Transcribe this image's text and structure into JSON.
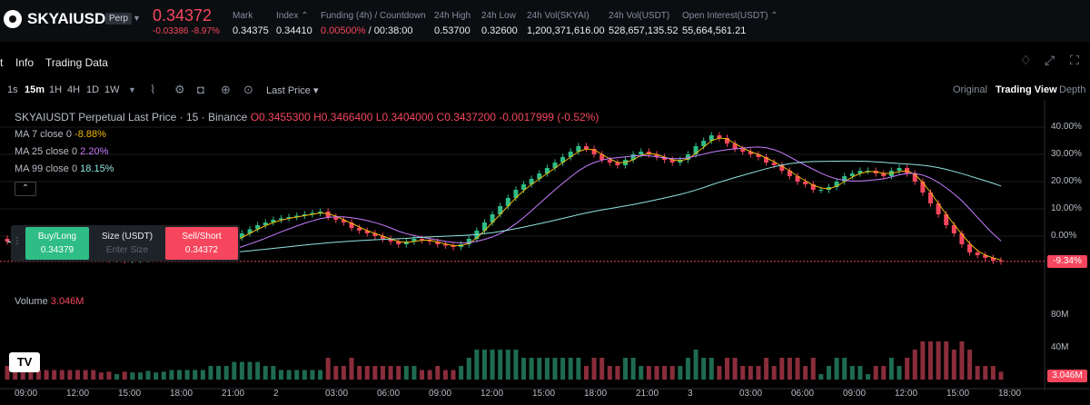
{
  "ticker": {
    "symbol": "SKYAIUSDT",
    "badge": "Perp",
    "last_price": "0.34372",
    "change": "-0.03386 -8.97%",
    "stats": [
      {
        "label": "Mark",
        "value": "0.34375"
      },
      {
        "label": "Index",
        "value": "0.34410"
      },
      {
        "label": "Funding (4h) / Countdown",
        "value_rate": "0.00500%",
        "value_rest": " / 00:38:00"
      },
      {
        "label": "24h High",
        "value": "0.53700"
      },
      {
        "label": "24h Low",
        "value": "0.32600"
      },
      {
        "label": "24h Vol(SKYAI)",
        "value": "1,200,371,616.00"
      },
      {
        "label": "24h Vol(USDT)",
        "value": "528,657,135.52"
      },
      {
        "label": "Open Interest(USDT)",
        "value": "55,664,561.21"
      }
    ]
  },
  "tabs": [
    "t",
    "Info",
    "Trading Data"
  ],
  "toolbar": {
    "intervals": [
      "1s",
      "15m",
      "1H",
      "4H",
      "1D",
      "1W"
    ],
    "active_interval": "15m",
    "price_type": "Last Price",
    "views": [
      "Original",
      "Trading View",
      "Depth"
    ],
    "active_view": "Trading View"
  },
  "legend": {
    "title": "SKYAIUSDT Perpetual Last Price · 15 · Binance",
    "ohlc": "O0.3455300 H0.3466400 L0.3404000 C0.3437200 -0.0017999 (-0.52%)",
    "ma7_label": "MA 7 close 0",
    "ma7_value": "-8.88%",
    "ma25_label": "MA 25 close 0",
    "ma25_value": "2.20%",
    "ma99_label": "MA 99 close 0",
    "ma99_value": "18.15%",
    "volume_label": "Volume",
    "volume_value": "3.046M"
  },
  "order": {
    "buy_label": "Buy/Long",
    "buy_price": "0.34379",
    "size_label": "Size (USDT)",
    "size_placeholder": "Enter Size",
    "sell_label": "Sell/Short",
    "sell_price": "0.34372"
  },
  "y_axis": [
    "40.00%",
    "30.00%",
    "20.00%",
    "10.00%",
    "0.00%"
  ],
  "current_tag": "-9.34%",
  "vol_axis": [
    "80M",
    "40M"
  ],
  "vol_tag": "3.046M",
  "x_axis": [
    "09:00",
    "12:00",
    "15:00",
    "18:00",
    "21:00",
    "2",
    "03:00",
    "06:00",
    "09:00",
    "12:00",
    "15:00",
    "18:00",
    "21:00",
    "3",
    "03:00",
    "06:00",
    "09:00",
    "12:00",
    "15:00",
    "18:00"
  ],
  "colors": {
    "up": "#2ebd85",
    "down": "#f6465d",
    "ma7": "#f0b90b",
    "ma25": "#c77dff",
    "ma99": "#8fe4e0"
  },
  "chart_data": {
    "type": "candlestick",
    "y_unit": "percent change",
    "ylim": [
      -15,
      45
    ],
    "close": [
      -2,
      -3,
      -3.5,
      -4,
      -4.5,
      -5,
      -5.5,
      -6,
      -6.5,
      -7,
      -7.5,
      -8,
      -8.2,
      -8.5,
      -8.5,
      -8.8,
      -8.6,
      -8.4,
      -8,
      -7.8,
      -7.5,
      -7,
      -6.5,
      -6,
      -5.5,
      -5,
      -4,
      -3,
      -2,
      -0.5,
      1,
      2.5,
      4,
      5,
      6,
      6.5,
      7,
      7.5,
      8,
      8.5,
      9,
      7,
      6,
      5,
      3,
      2,
      1,
      0,
      -1,
      -2,
      -3,
      -2,
      -1,
      -1.5,
      -2,
      -3,
      -3.5,
      -4,
      -3,
      -1,
      2,
      5,
      8,
      11,
      14,
      17,
      19,
      21,
      23,
      25,
      27,
      29,
      31,
      33,
      32,
      30,
      28,
      27,
      26,
      28,
      30,
      31,
      30,
      29,
      28,
      27,
      28,
      30,
      33,
      35,
      37,
      36,
      34,
      32,
      31,
      30,
      29,
      27,
      26,
      24,
      22,
      20,
      19,
      17,
      17,
      18,
      20,
      22,
      23,
      24,
      24,
      23,
      22,
      24,
      25,
      23,
      20,
      16,
      12,
      8,
      4,
      1,
      -3,
      -6,
      -7,
      -8,
      -9,
      -9.3
    ]
  }
}
